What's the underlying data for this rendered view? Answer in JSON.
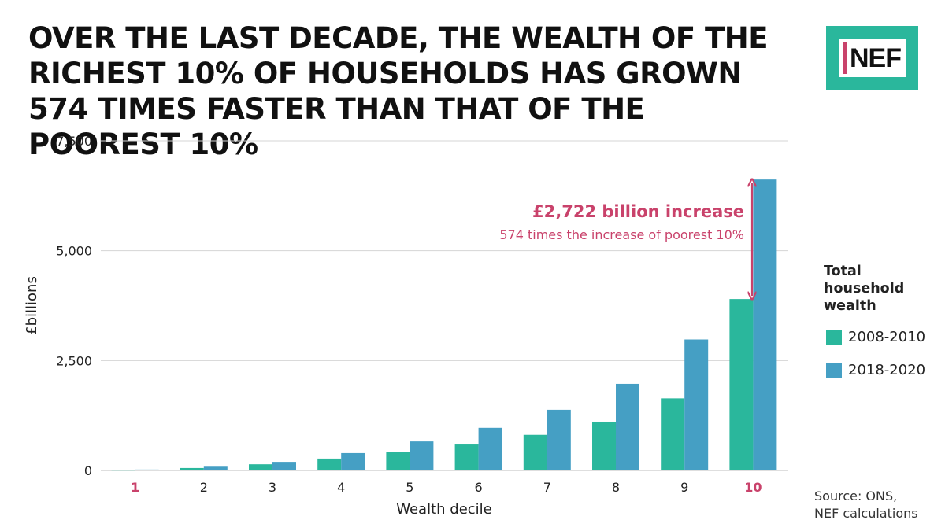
{
  "header": {
    "title": "OVER THE LAST DECADE, THE WEALTH OF THE RICHEST 10% OF HOUSEHOLDS HAS GROWN 574 TIMES FASTER THAN THAT OF THE POOREST 10%"
  },
  "logo": {
    "text": "NEF"
  },
  "legend": {
    "title": "Total household wealth"
  },
  "annotation": {
    "headline": "£2,722 billion increase",
    "subline": "574 times the increase of poorest 10%"
  },
  "source": {
    "line1": "Source: ONS,",
    "line2": "NEF calculations"
  },
  "colors": {
    "teal": "#2ab79c",
    "blue": "#459fc4",
    "accent": "#c9426b",
    "grid": "#d4d4d4"
  },
  "chart_data": {
    "type": "bar",
    "xlabel": "Wealth decile",
    "ylabel": "£billions",
    "ylim": [
      0,
      7500
    ],
    "yticks": [
      0,
      2500,
      5000,
      7500
    ],
    "ytick_labels": [
      "0",
      "2,500",
      "5,000",
      "7,500"
    ],
    "categories": [
      "1",
      "2",
      "3",
      "4",
      "5",
      "6",
      "7",
      "8",
      "9",
      "10"
    ],
    "highlight_categories": [
      "1",
      "10"
    ],
    "grid": true,
    "legend_position": "right",
    "series": [
      {
        "name": "2008-2010",
        "values": [
          15,
          55,
          140,
          270,
          420,
          590,
          810,
          1110,
          1640,
          3900
        ]
      },
      {
        "name": "2018-2020",
        "values": [
          20,
          85,
          195,
          395,
          660,
          970,
          1380,
          1970,
          2980,
          6620
        ]
      }
    ]
  }
}
